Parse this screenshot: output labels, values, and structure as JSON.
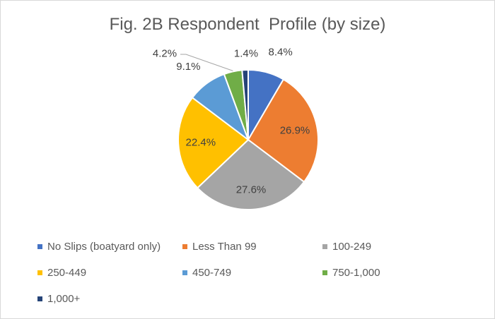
{
  "chart_data": {
    "type": "pie",
    "title": "Fig. 2B Respondent  Profile (by size)",
    "categories": [
      "No Slips (boatyard only)",
      "Less Than 99",
      "100-249",
      "250-449",
      "450-749",
      "750-1,000",
      "1,000+"
    ],
    "values": [
      8.4,
      26.9,
      27.6,
      22.4,
      9.1,
      4.2,
      1.4
    ],
    "data_labels": [
      "8.4%",
      "26.9%",
      "27.6%",
      "22.4%",
      "9.1%",
      "4.2%",
      "1.4%"
    ],
    "colors": [
      "#4472c4",
      "#ed7d31",
      "#a5a5a5",
      "#ffc000",
      "#5b9bd5",
      "#70ad47",
      "#264478"
    ],
    "legend_position": "bottom",
    "start_angle": "top, clockwise"
  }
}
